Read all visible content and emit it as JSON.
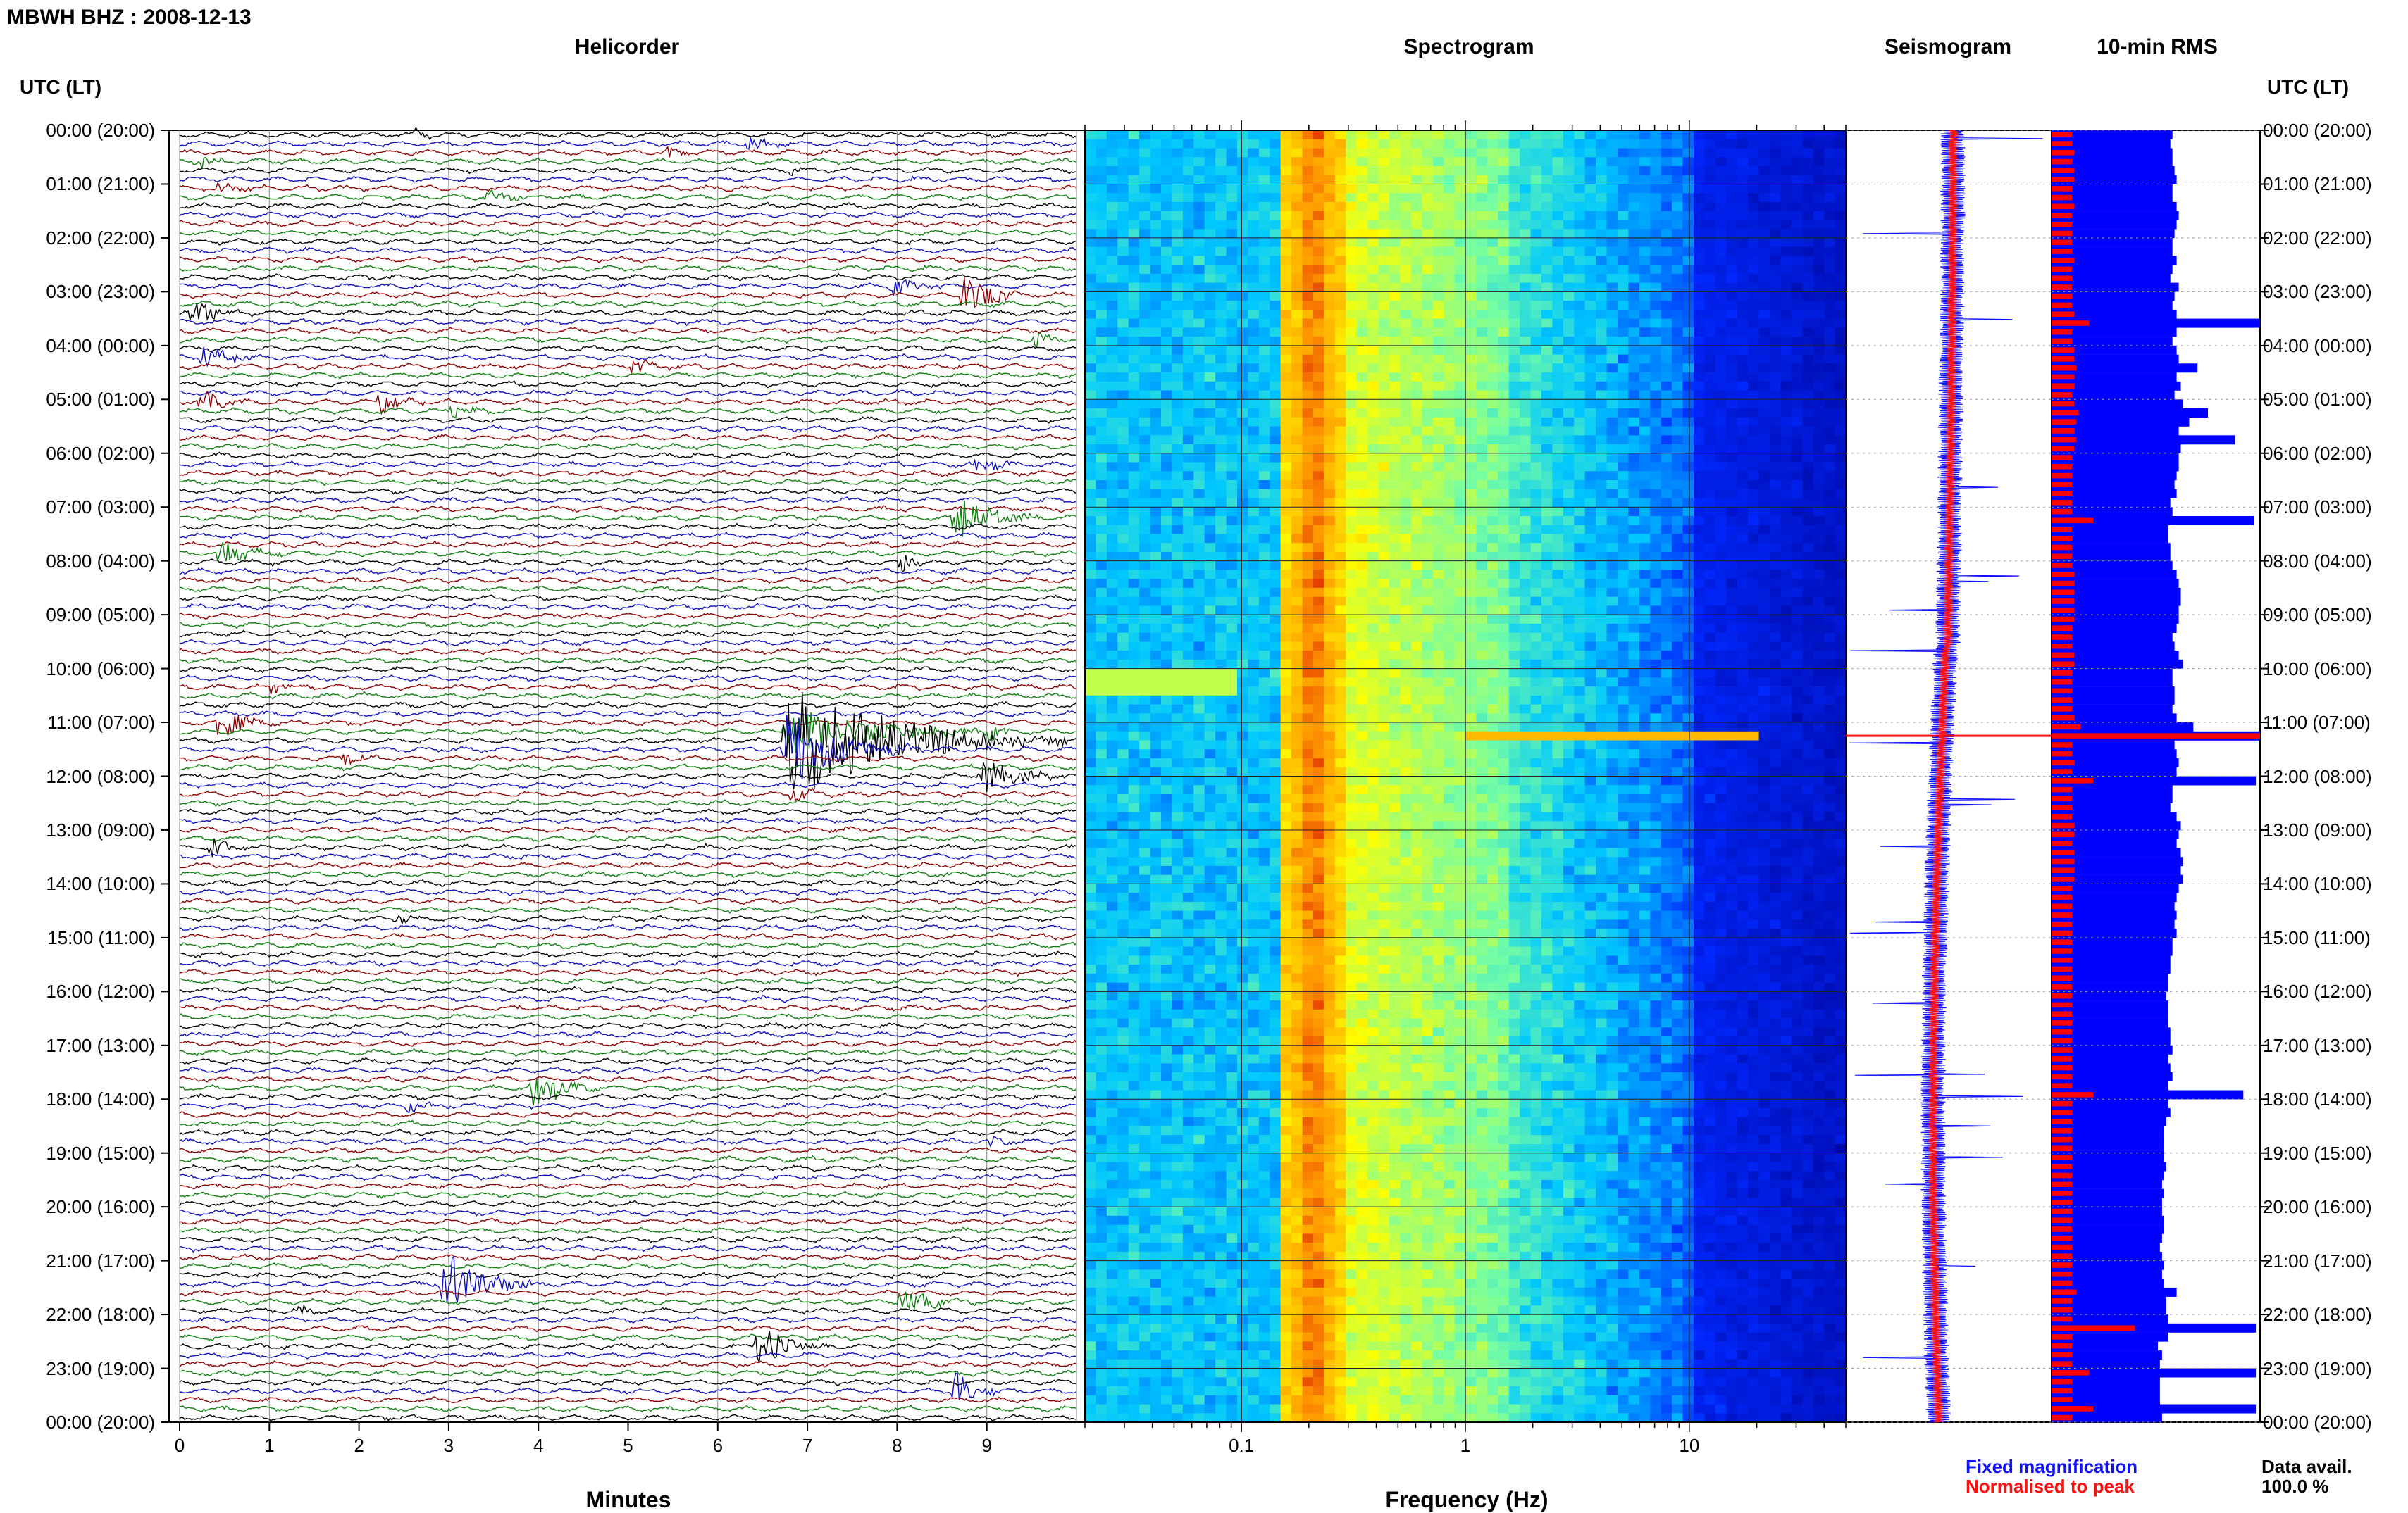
{
  "header": {
    "station_title": "MBWH BHZ : 2008-12-13",
    "utc_lt_left": "UTC (LT)",
    "utc_lt_right": "UTC (LT)"
  },
  "panels": {
    "helicorder": "Helicorder",
    "spectrogram": "Spectrogram",
    "seismogram": "Seismogram",
    "rms": "10-min RMS"
  },
  "axes": {
    "helicorder_xlabel": "Minutes",
    "spectrogram_xlabel": "Frequency (Hz)"
  },
  "legend": {
    "fixed": "Fixed magnification",
    "normalised": "Normalised to peak",
    "fixed_color": "#1010ff",
    "normalised_color": "#ff1010"
  },
  "data_avail": {
    "label": "Data avail.",
    "value": "100.0 %"
  },
  "colors": {
    "trace_cycle": [
      "#000000",
      "#1010c0",
      "#900000",
      "#108010"
    ],
    "rms_blue": "#0000ff",
    "rms_red": "#ff0000"
  },
  "chart_data": [
    {
      "type": "line",
      "name": "helicorder",
      "xlabel": "Minutes",
      "xticks": [
        "0",
        "1",
        "2",
        "3",
        "4",
        "5",
        "6",
        "7",
        "8",
        "9"
      ],
      "xlim": [
        0,
        10
      ],
      "row_labels": [
        "00:00 (20:00)",
        "01:00 (21:00)",
        "02:00 (22:00)",
        "03:00 (23:00)",
        "04:00 (00:00)",
        "05:00 (01:00)",
        "06:00 (02:00)",
        "07:00 (03:00)",
        "08:00 (04:00)",
        "09:00 (05:00)",
        "10:00 (06:00)",
        "11:00 (07:00)",
        "12:00 (08:00)",
        "13:00 (09:00)",
        "14:00 (10:00)",
        "15:00 (11:00)",
        "16:00 (12:00)",
        "17:00 (13:00)",
        "18:00 (14:00)",
        "19:00 (15:00)",
        "20:00 (16:00)",
        "21:00 (17:00)",
        "22:00 (18:00)",
        "23:00 (19:00)",
        "00:00 (20:00)"
      ],
      "traces_per_hour": 6,
      "events": [
        {
          "row": 0,
          "minute": 2.6,
          "amp": 1.2,
          "dur": 0.4
        },
        {
          "row": 1,
          "minute": 6.3,
          "amp": 1.0,
          "dur": 0.8
        },
        {
          "row": 2,
          "minute": 5.4,
          "amp": 1.0,
          "dur": 0.6
        },
        {
          "row": 3,
          "minute": 0.2,
          "amp": 1.4,
          "dur": 0.4
        },
        {
          "row": 4,
          "minute": 6.8,
          "amp": 1.0,
          "dur": 0.3
        },
        {
          "row": 6,
          "minute": 0.4,
          "amp": 1.0,
          "dur": 0.6
        },
        {
          "row": 7,
          "minute": 3.4,
          "amp": 1.2,
          "dur": 0.6
        },
        {
          "row": 17,
          "minute": 7.9,
          "amp": 1.5,
          "dur": 0.8
        },
        {
          "row": 18,
          "minute": 8.7,
          "amp": 3.5,
          "dur": 0.8
        },
        {
          "row": 20,
          "minute": 0.1,
          "amp": 2.5,
          "dur": 0.6
        },
        {
          "row": 23,
          "minute": 9.5,
          "amp": 1.6,
          "dur": 0.4
        },
        {
          "row": 25,
          "minute": 0.2,
          "amp": 2.2,
          "dur": 0.8
        },
        {
          "row": 26,
          "minute": 5.0,
          "amp": 1.6,
          "dur": 0.5
        },
        {
          "row": 30,
          "minute": 0.2,
          "amp": 2.2,
          "dur": 0.6
        },
        {
          "row": 30,
          "minute": 2.2,
          "amp": 2.4,
          "dur": 0.6
        },
        {
          "row": 31,
          "minute": 3.0,
          "amp": 1.2,
          "dur": 0.6
        },
        {
          "row": 37,
          "minute": 8.8,
          "amp": 1.4,
          "dur": 0.8
        },
        {
          "row": 43,
          "minute": 8.6,
          "amp": 4.0,
          "dur": 1.0
        },
        {
          "row": 47,
          "minute": 0.4,
          "amp": 2.0,
          "dur": 1.0
        },
        {
          "row": 48,
          "minute": 8.0,
          "amp": 2.0,
          "dur": 0.5
        },
        {
          "row": 62,
          "minute": 1.0,
          "amp": 1.6,
          "dur": 0.4
        },
        {
          "row": 63,
          "minute": 1.9,
          "amp": 1.3,
          "dur": 0.4
        },
        {
          "row": 66,
          "minute": 0.4,
          "amp": 2.8,
          "dur": 0.8
        },
        {
          "row": 67,
          "minute": 6.7,
          "amp": 3.5,
          "dur": 2.6
        },
        {
          "row": 67,
          "minute": 9.0,
          "amp": 1.4,
          "dur": 0.4
        },
        {
          "row": 68,
          "minute": 6.7,
          "amp": 9.0,
          "dur": 3.2
        },
        {
          "row": 69,
          "minute": 6.7,
          "amp": 6.0,
          "dur": 1.6
        },
        {
          "row": 70,
          "minute": 1.8,
          "amp": 1.2,
          "dur": 0.6
        },
        {
          "row": 72,
          "minute": 8.9,
          "amp": 3.0,
          "dur": 1.0
        },
        {
          "row": 74,
          "minute": 6.8,
          "amp": 1.4,
          "dur": 0.6
        },
        {
          "row": 80,
          "minute": 0.3,
          "amp": 2.0,
          "dur": 0.6
        },
        {
          "row": 88,
          "minute": 2.4,
          "amp": 1.2,
          "dur": 0.4
        },
        {
          "row": 107,
          "minute": 3.9,
          "amp": 3.4,
          "dur": 0.8
        },
        {
          "row": 109,
          "minute": 2.5,
          "amp": 1.4,
          "dur": 0.5
        },
        {
          "row": 113,
          "minute": 9.0,
          "amp": 1.2,
          "dur": 0.4
        },
        {
          "row": 129,
          "minute": 2.9,
          "amp": 5.0,
          "dur": 1.2
        },
        {
          "row": 131,
          "minute": 8.0,
          "amp": 2.6,
          "dur": 0.9
        },
        {
          "row": 132,
          "minute": 1.3,
          "amp": 1.2,
          "dur": 0.4
        },
        {
          "row": 136,
          "minute": 6.4,
          "amp": 3.2,
          "dur": 1.0
        },
        {
          "row": 141,
          "minute": 8.6,
          "amp": 3.4,
          "dur": 0.6
        }
      ]
    },
    {
      "type": "heatmap",
      "name": "spectrogram",
      "xlabel": "Frequency (Hz)",
      "xscale": "log",
      "xlim": [
        0.02,
        50
      ],
      "xticks": [
        "0.1",
        "1",
        "10"
      ],
      "peak_band_hz": [
        0.15,
        0.3
      ]
    },
    {
      "type": "line",
      "name": "seismogram",
      "series": [
        {
          "name": "Fixed magnification",
          "color": "#1010ff"
        },
        {
          "name": "Normalised to peak",
          "color": "#ff1010"
        }
      ]
    },
    {
      "type": "bar",
      "name": "10-min RMS",
      "orientation": "horizontal",
      "values_blue": [
        0.58,
        0.57,
        0.58,
        0.58,
        0.59,
        0.6,
        0.58,
        0.58,
        0.6,
        0.61,
        0.6,
        0.59,
        0.58,
        0.58,
        0.6,
        0.58,
        0.57,
        0.61,
        0.59,
        0.58,
        0.6,
        1.0,
        0.6,
        0.58,
        0.6,
        0.61,
        0.7,
        0.6,
        0.62,
        0.59,
        0.63,
        0.75,
        0.66,
        0.61,
        0.88,
        0.62,
        0.61,
        0.61,
        0.6,
        0.59,
        0.6,
        0.57,
        0.58,
        0.97,
        0.56,
        0.56,
        0.57,
        0.57,
        0.58,
        0.6,
        0.61,
        0.62,
        0.62,
        0.61,
        0.61,
        0.6,
        0.58,
        0.59,
        0.61,
        0.63,
        0.58,
        0.58,
        0.59,
        0.59,
        0.58,
        0.6,
        0.68,
        1.0,
        0.59,
        0.6,
        0.61,
        0.6,
        0.98,
        0.58,
        0.58,
        0.57,
        0.6,
        0.62,
        0.61,
        0.6,
        0.62,
        0.63,
        0.62,
        0.63,
        0.61,
        0.6,
        0.59,
        0.6,
        0.59,
        0.6,
        0.58,
        0.58,
        0.57,
        0.57,
        0.56,
        0.56,
        0.55,
        0.56,
        0.56,
        0.56,
        0.57,
        0.57,
        0.58,
        0.56,
        0.57,
        0.58,
        0.56,
        0.92,
        0.56,
        0.57,
        0.55,
        0.54,
        0.54,
        0.54,
        0.54,
        0.55,
        0.54,
        0.53,
        0.54,
        0.53,
        0.53,
        0.54,
        0.54,
        0.53,
        0.52,
        0.53,
        0.54,
        0.53,
        0.54,
        0.6,
        0.55,
        0.55,
        0.56,
        0.98,
        0.56,
        0.51,
        0.53,
        0.52,
        0.98,
        0.52,
        0.52,
        0.52,
        0.98,
        0.53
      ],
      "values_red": [
        0.1,
        0.1,
        0.11,
        0.1,
        0.11,
        0.11,
        0.1,
        0.1,
        0.11,
        0.1,
        0.1,
        0.1,
        0.1,
        0.1,
        0.11,
        0.1,
        0.1,
        0.1,
        0.1,
        0.1,
        0.11,
        0.18,
        0.1,
        0.1,
        0.11,
        0.11,
        0.12,
        0.11,
        0.11,
        0.1,
        0.11,
        0.13,
        0.12,
        0.11,
        0.12,
        0.11,
        0.1,
        0.1,
        0.1,
        0.1,
        0.1,
        0.1,
        0.1,
        0.2,
        0.1,
        0.1,
        0.1,
        0.1,
        0.1,
        0.11,
        0.11,
        0.11,
        0.11,
        0.11,
        0.11,
        0.1,
        0.1,
        0.1,
        0.11,
        0.11,
        0.1,
        0.1,
        0.1,
        0.1,
        0.1,
        0.11,
        0.14,
        1.0,
        0.1,
        0.1,
        0.11,
        0.1,
        0.2,
        0.1,
        0.1,
        0.1,
        0.1,
        0.11,
        0.11,
        0.1,
        0.11,
        0.11,
        0.11,
        0.11,
        0.1,
        0.1,
        0.1,
        0.1,
        0.1,
        0.1,
        0.1,
        0.1,
        0.1,
        0.1,
        0.1,
        0.1,
        0.1,
        0.1,
        0.1,
        0.1,
        0.1,
        0.1,
        0.1,
        0.1,
        0.1,
        0.1,
        0.1,
        0.2,
        0.1,
        0.1,
        0.1,
        0.1,
        0.1,
        0.1,
        0.1,
        0.1,
        0.1,
        0.1,
        0.1,
        0.1,
        0.1,
        0.1,
        0.1,
        0.1,
        0.1,
        0.1,
        0.1,
        0.1,
        0.1,
        0.12,
        0.1,
        0.1,
        0.1,
        0.4,
        0.1,
        0.1,
        0.1,
        0.1,
        0.18,
        0.1,
        0.1,
        0.1,
        0.2,
        0.1
      ]
    }
  ]
}
